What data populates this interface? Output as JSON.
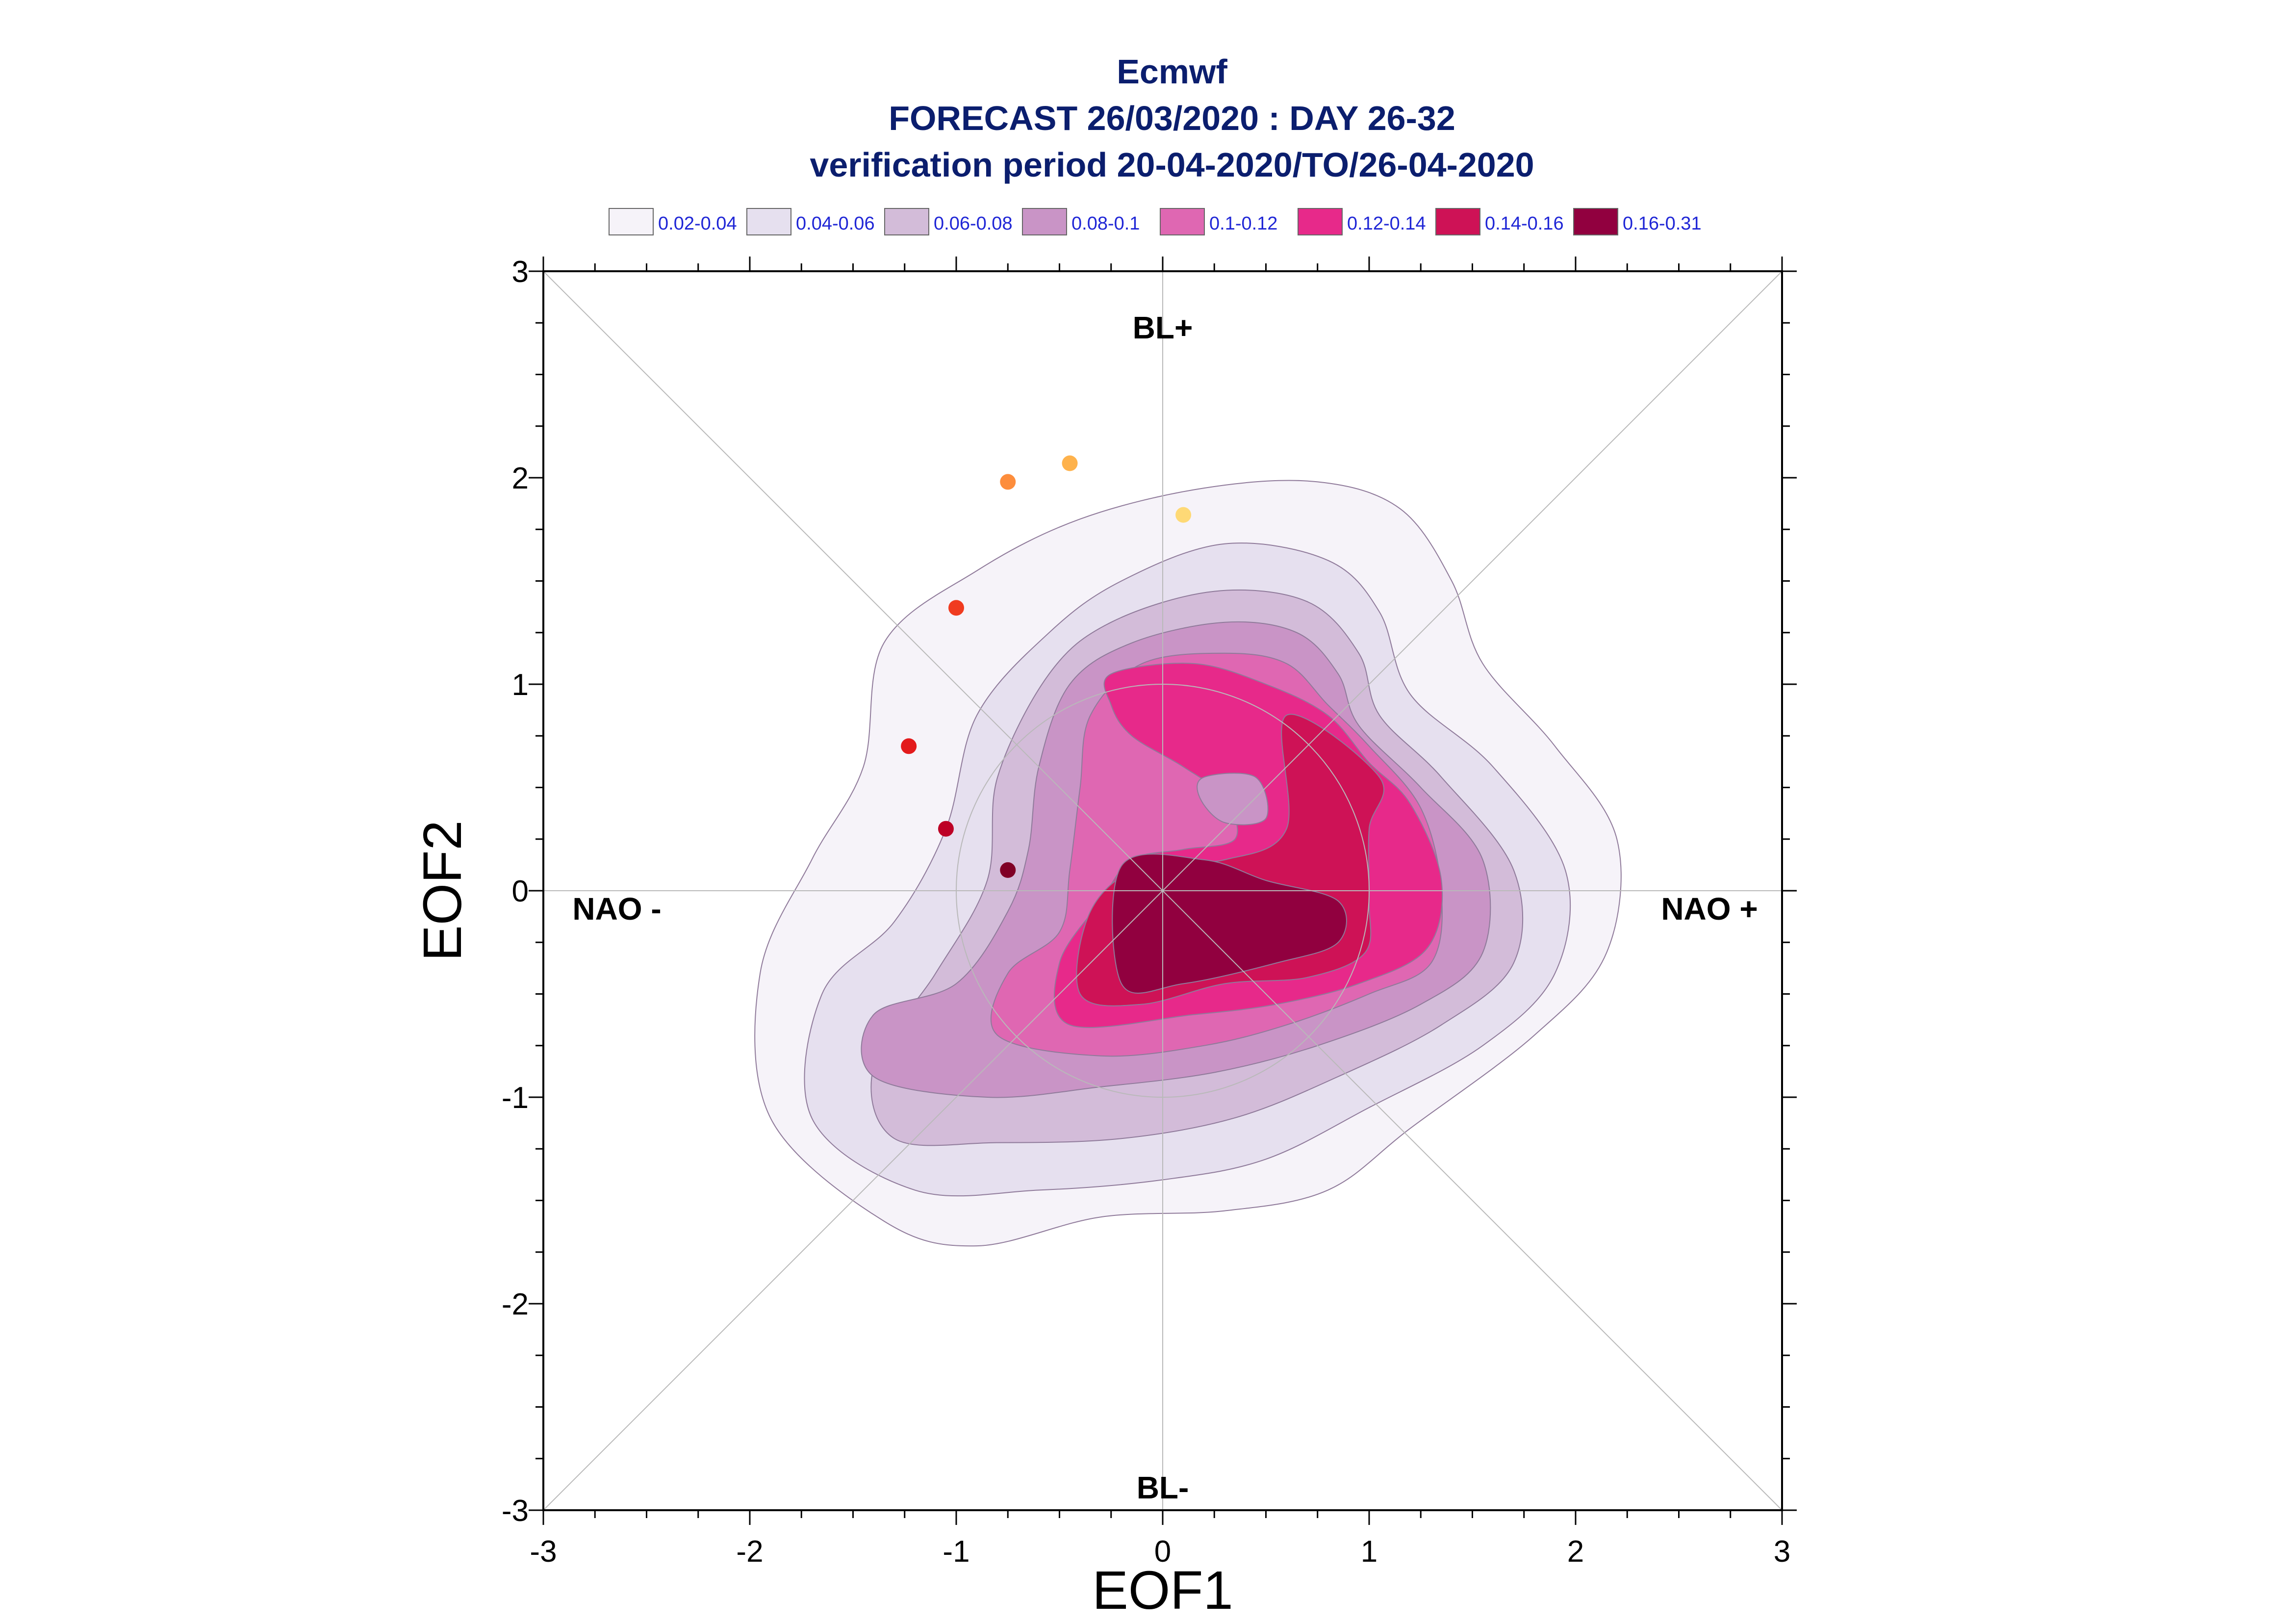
{
  "chart_data": {
    "type": "contour",
    "title_lines": [
      "Ecmwf",
      "FORECAST 26/03/2020 : DAY 26-32",
      "verification period 20-04-2020/TO/26-04-2020"
    ],
    "xlabel": "EOF1",
    "ylabel": "EOF2",
    "xlim": [
      -3,
      3
    ],
    "ylim": [
      -3,
      3
    ],
    "x_ticks": [
      "-3",
      "-2",
      "-1",
      "0",
      "1",
      "2",
      "3"
    ],
    "y_ticks": [
      "-3",
      "-2",
      "-1",
      "0",
      "1",
      "2",
      "3"
    ],
    "legend": [
      {
        "label": "0.02-0.04",
        "color": "#f6f3f9"
      },
      {
        "label": "0.04-0.06",
        "color": "#e6e0ef"
      },
      {
        "label": "0.06-0.08",
        "color": "#d3bcd9"
      },
      {
        "label": "0.08-0.1",
        "color": "#c994c6"
      },
      {
        "label": "0.1-0.12",
        "color": "#df67b2"
      },
      {
        "label": "0.12-0.14",
        "color": "#e7298a"
      },
      {
        "label": "0.14-0.16",
        "color": "#ce1256"
      },
      {
        "label": "0.16-0.31",
        "color": "#91003f"
      }
    ],
    "regime_labels": {
      "top": "BL+",
      "bottom": "BL-",
      "left": "NAO -",
      "right": "NAO +"
    },
    "density_levels": [
      {
        "level": "0.02-0.04",
        "color": "#f6f3f9",
        "polygon": [
          [
            -1.35,
            1.2
          ],
          [
            -0.9,
            1.55
          ],
          [
            -0.4,
            1.8
          ],
          [
            0.2,
            1.95
          ],
          [
            0.75,
            1.98
          ],
          [
            1.15,
            1.85
          ],
          [
            1.4,
            1.5
          ],
          [
            1.55,
            1.1
          ],
          [
            1.9,
            0.7
          ],
          [
            2.2,
            0.25
          ],
          [
            2.15,
            -0.3
          ],
          [
            1.8,
            -0.7
          ],
          [
            1.2,
            -1.15
          ],
          [
            0.8,
            -1.45
          ],
          [
            0.3,
            -1.55
          ],
          [
            -0.3,
            -1.58
          ],
          [
            -0.9,
            -1.72
          ],
          [
            -1.35,
            -1.6
          ],
          [
            -1.9,
            -1.1
          ],
          [
            -1.95,
            -0.4
          ],
          [
            -1.7,
            0.15
          ],
          [
            -1.45,
            0.6
          ],
          [
            -1.35,
            1.2
          ]
        ]
      },
      {
        "level": "0.04-0.06",
        "color": "#e6e0ef",
        "polygon": [
          [
            -0.9,
            0.85
          ],
          [
            -0.55,
            1.25
          ],
          [
            -0.2,
            1.5
          ],
          [
            0.3,
            1.68
          ],
          [
            0.8,
            1.6
          ],
          [
            1.05,
            1.35
          ],
          [
            1.2,
            0.95
          ],
          [
            1.6,
            0.6
          ],
          [
            1.95,
            0.1
          ],
          [
            1.9,
            -0.4
          ],
          [
            1.55,
            -0.75
          ],
          [
            1.0,
            -1.05
          ],
          [
            0.5,
            -1.3
          ],
          [
            0.0,
            -1.4
          ],
          [
            -0.6,
            -1.45
          ],
          [
            -1.2,
            -1.45
          ],
          [
            -1.7,
            -1.1
          ],
          [
            -1.65,
            -0.5
          ],
          [
            -1.3,
            -0.15
          ],
          [
            -1.05,
            0.3
          ],
          [
            -0.9,
            0.85
          ]
        ]
      },
      {
        "level": "0.06-0.08",
        "color": "#d3bcd9",
        "polygon": [
          [
            -0.8,
            0.55
          ],
          [
            -0.55,
            1.05
          ],
          [
            -0.25,
            1.3
          ],
          [
            0.25,
            1.45
          ],
          [
            0.7,
            1.4
          ],
          [
            0.95,
            1.15
          ],
          [
            1.05,
            0.85
          ],
          [
            1.35,
            0.55
          ],
          [
            1.7,
            0.1
          ],
          [
            1.7,
            -0.35
          ],
          [
            1.35,
            -0.65
          ],
          [
            0.85,
            -0.9
          ],
          [
            0.35,
            -1.1
          ],
          [
            -0.2,
            -1.2
          ],
          [
            -0.8,
            -1.22
          ],
          [
            -1.3,
            -1.2
          ],
          [
            -1.4,
            -0.85
          ],
          [
            -1.1,
            -0.4
          ],
          [
            -0.85,
            0.05
          ],
          [
            -0.8,
            0.55
          ]
        ]
      },
      {
        "level": "0.08-0.1",
        "color": "#c994c6",
        "polygon": [
          [
            -0.6,
            0.6
          ],
          [
            -0.45,
            1.0
          ],
          [
            -0.15,
            1.2
          ],
          [
            0.3,
            1.3
          ],
          [
            0.65,
            1.25
          ],
          [
            0.85,
            1.05
          ],
          [
            0.95,
            0.8
          ],
          [
            1.25,
            0.5
          ],
          [
            1.55,
            0.15
          ],
          [
            1.55,
            -0.3
          ],
          [
            1.25,
            -0.55
          ],
          [
            0.75,
            -0.75
          ],
          [
            0.25,
            -0.88
          ],
          [
            -0.3,
            -0.95
          ],
          [
            -0.85,
            -1.0
          ],
          [
            -1.4,
            -0.9
          ],
          [
            -1.4,
            -0.6
          ],
          [
            -1.0,
            -0.45
          ],
          [
            -0.75,
            -0.1
          ],
          [
            -0.65,
            0.2
          ],
          [
            -0.6,
            0.6
          ]
        ]
      },
      {
        "level": "0.1-0.12",
        "color": "#df67b2",
        "polygon": [
          [
            -0.4,
            0.5
          ],
          [
            -0.35,
            0.85
          ],
          [
            -0.1,
            1.1
          ],
          [
            0.3,
            1.15
          ],
          [
            0.6,
            1.1
          ],
          [
            0.8,
            0.9
          ],
          [
            1.0,
            0.7
          ],
          [
            1.25,
            0.4
          ],
          [
            1.35,
            0.0
          ],
          [
            1.3,
            -0.35
          ],
          [
            1.0,
            -0.5
          ],
          [
            0.6,
            -0.65
          ],
          [
            0.2,
            -0.75
          ],
          [
            -0.3,
            -0.8
          ],
          [
            -0.8,
            -0.7
          ],
          [
            -0.75,
            -0.4
          ],
          [
            -0.5,
            -0.2
          ],
          [
            -0.45,
            0.1
          ],
          [
            -0.4,
            0.5
          ]
        ]
      },
      {
        "level": "0.12-0.14",
        "color": "#e7298a",
        "polygon": [
          [
            -0.25,
            1.05
          ],
          [
            0.15,
            1.1
          ],
          [
            0.5,
            1.0
          ],
          [
            0.8,
            0.85
          ],
          [
            1.0,
            0.62
          ],
          [
            1.2,
            0.42
          ],
          [
            1.35,
            0.05
          ],
          [
            1.28,
            -0.28
          ],
          [
            0.95,
            -0.45
          ],
          [
            0.55,
            -0.55
          ],
          [
            0.15,
            -0.6
          ],
          [
            -0.45,
            -0.65
          ],
          [
            -0.5,
            -0.35
          ],
          [
            -0.3,
            -0.05
          ],
          [
            -0.15,
            0.15
          ],
          [
            0.1,
            0.2
          ],
          [
            0.35,
            0.25
          ],
          [
            0.3,
            0.45
          ],
          [
            0.1,
            0.6
          ],
          [
            -0.15,
            0.75
          ],
          [
            -0.25,
            0.9
          ],
          [
            -0.25,
            1.05
          ]
        ]
      },
      {
        "level": "0.14-0.16",
        "color": "#ce1256",
        "polygon": [
          [
            0.6,
            0.85
          ],
          [
            1.05,
            0.55
          ],
          [
            1.0,
            0.3
          ],
          [
            1.0,
            -0.05
          ],
          [
            0.98,
            -0.3
          ],
          [
            0.7,
            -0.42
          ],
          [
            0.3,
            -0.45
          ],
          [
            -0.1,
            -0.55
          ],
          [
            -0.4,
            -0.5
          ],
          [
            -0.35,
            -0.1
          ],
          [
            -0.1,
            0.12
          ],
          [
            0.3,
            0.15
          ],
          [
            0.6,
            0.3
          ],
          [
            0.6,
            0.85
          ]
        ]
      },
      {
        "level": "0.16-0.31",
        "color": "#91003f",
        "polygon": [
          [
            -0.2,
            0.12
          ],
          [
            0.2,
            0.15
          ],
          [
            0.5,
            0.05
          ],
          [
            0.85,
            -0.05
          ],
          [
            0.85,
            -0.25
          ],
          [
            0.55,
            -0.35
          ],
          [
            0.1,
            -0.45
          ],
          [
            -0.2,
            -0.45
          ],
          [
            -0.2,
            0.12
          ]
        ]
      }
    ],
    "hole_polygon": [
      [
        0.2,
        0.55
      ],
      [
        0.45,
        0.55
      ],
      [
        0.5,
        0.35
      ],
      [
        0.3,
        0.33
      ],
      [
        0.18,
        0.45
      ],
      [
        0.2,
        0.55
      ]
    ],
    "points": [
      {
        "x": 0.1,
        "y": 1.82,
        "color": "#fed976"
      },
      {
        "x": -0.45,
        "y": 2.07,
        "color": "#feb24c"
      },
      {
        "x": -0.75,
        "y": 1.98,
        "color": "#fd8d3c"
      },
      {
        "x": -1.0,
        "y": 1.37,
        "color": "#f03b20"
      },
      {
        "x": -1.23,
        "y": 0.7,
        "color": "#e31a1c"
      },
      {
        "x": -1.05,
        "y": 0.3,
        "color": "#bd0026"
      },
      {
        "x": -0.75,
        "y": 0.1,
        "color": "#800026"
      }
    ],
    "grid": true
  }
}
